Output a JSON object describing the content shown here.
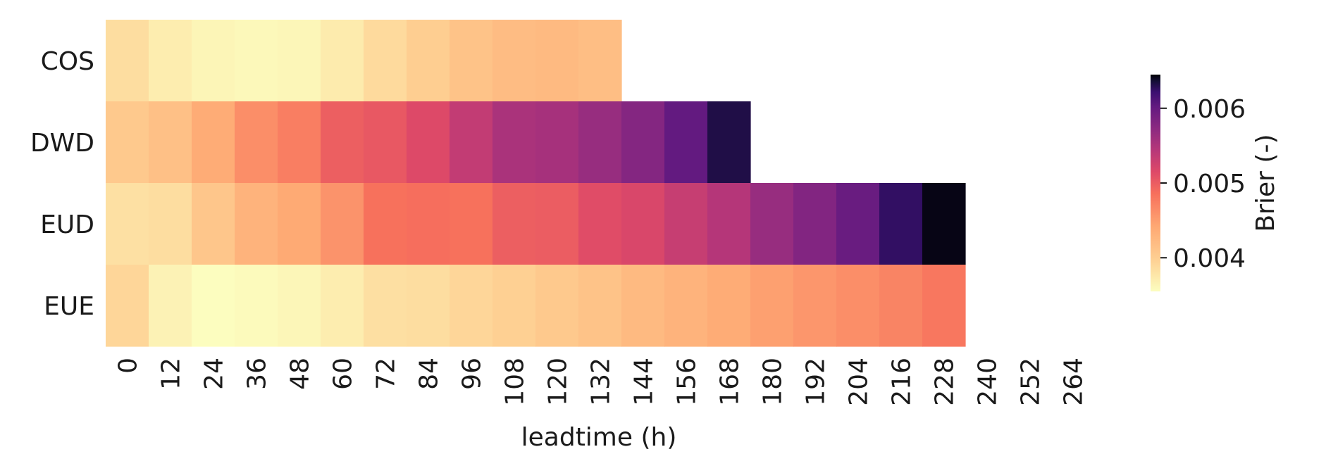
{
  "chart_data": {
    "type": "heatmap",
    "xlabel": "leadtime (h)",
    "rows": [
      "COS",
      "DWD",
      "EUD",
      "EUE"
    ],
    "columns": [
      "0",
      "12",
      "24",
      "36",
      "48",
      "60",
      "72",
      "84",
      "96",
      "108",
      "120",
      "132",
      "144",
      "156",
      "168",
      "180",
      "192",
      "204",
      "216",
      "228",
      "240",
      "252",
      "264"
    ],
    "values": [
      [
        0.00385,
        0.0037,
        0.00363,
        0.0036,
        0.00362,
        0.00372,
        0.00388,
        0.004,
        0.00412,
        0.0042,
        0.00422,
        0.00418,
        null,
        null,
        null,
        null,
        null,
        null,
        null,
        null,
        null,
        null,
        null
      ],
      [
        0.00405,
        0.00415,
        0.00438,
        0.00462,
        0.00475,
        0.00498,
        0.00503,
        0.00515,
        0.00535,
        0.00552,
        0.00555,
        0.00565,
        0.00578,
        0.00602,
        0.00632,
        null,
        null,
        null,
        null,
        null,
        null,
        null,
        null
      ],
      [
        0.00382,
        0.00385,
        0.00408,
        0.0043,
        0.0044,
        0.00458,
        0.00485,
        0.00487,
        0.00485,
        0.00498,
        0.005,
        0.00512,
        0.00518,
        0.00532,
        0.00545,
        0.00565,
        0.0058,
        0.00598,
        0.00625,
        0.00642,
        null,
        null,
        null
      ],
      [
        0.00392,
        0.00365,
        0.00355,
        0.00358,
        0.00362,
        0.0037,
        0.00383,
        0.00385,
        0.00392,
        0.00398,
        0.00405,
        0.00412,
        0.00422,
        0.0043,
        0.00438,
        0.00448,
        0.00456,
        0.00462,
        0.0047,
        0.0048,
        null,
        null,
        null
      ]
    ],
    "colorbar": {
      "label": "Brier (-)",
      "range": [
        0.00355,
        0.00645
      ],
      "ticks": [
        0.004,
        0.005,
        0.006
      ],
      "tick_labels": [
        "0.004",
        "0.005",
        "0.006"
      ],
      "colormap": "magma_r"
    }
  }
}
